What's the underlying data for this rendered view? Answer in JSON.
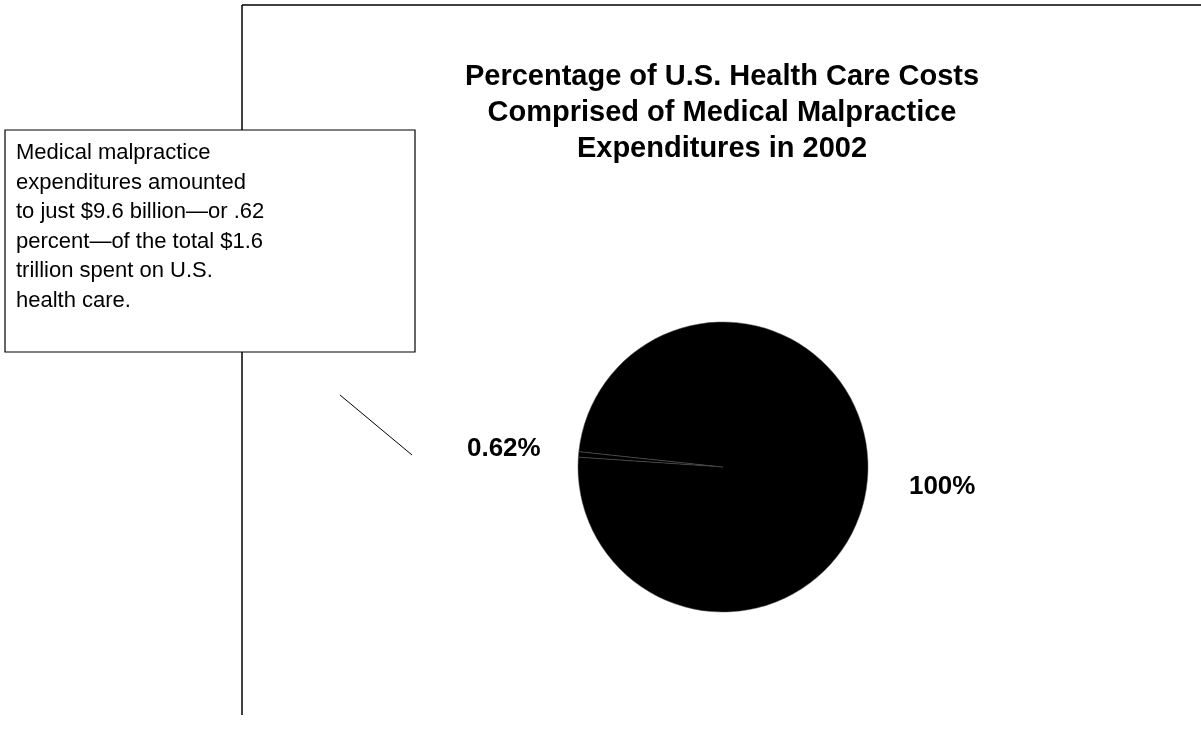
{
  "chart_data": {
    "type": "pie",
    "title": "Percentage of U.S. Health Care Costs\nComprised of Medical Malpractice\nExpenditures in 2002",
    "categories": [
      null,
      null
    ],
    "values": [
      0.62,
      100
    ],
    "colors": [
      "#000000",
      "#000000"
    ],
    "value_labels": [
      "0.62%",
      "100%"
    ],
    "annotations": [
      "Medical malpractice\nexpenditures amounted\nto just $9.6 billion—or .62\npercent—of the total $1.6\ntrillion spent on U.S.\nhealth care."
    ]
  }
}
